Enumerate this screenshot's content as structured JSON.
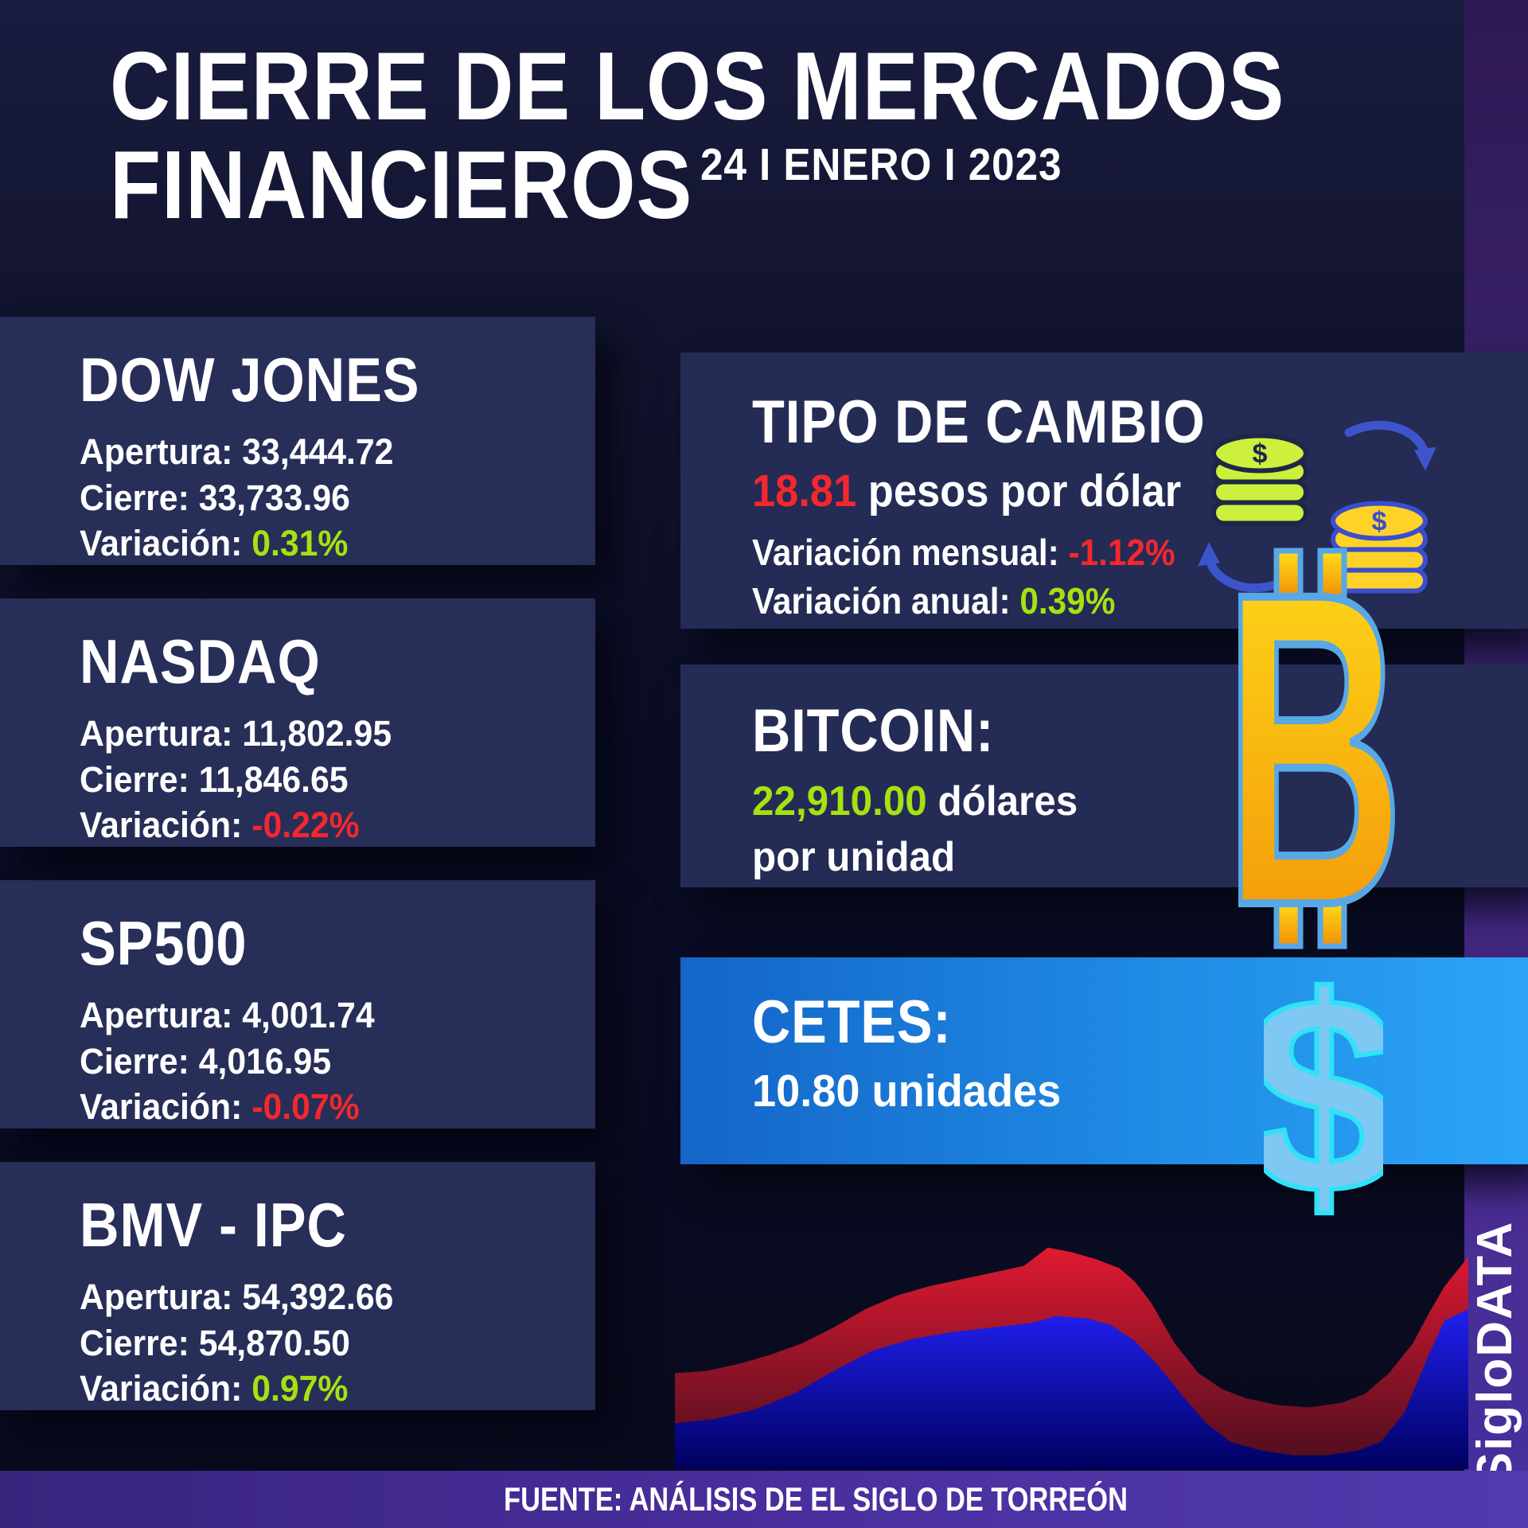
{
  "header": {
    "title_line1": "CIERRE DE LOS MERCADOS",
    "title_line2": "FINANCIEROS",
    "date": "24 I ENERO I 2023"
  },
  "labels": {
    "apertura": "Apertura:",
    "cierre": "Cierre:",
    "variacion": "Variación:"
  },
  "indices": [
    {
      "name": "DOW JONES",
      "apertura": "33,444.72",
      "cierre": "33,733.96",
      "variacion": "0.31%",
      "direction": "up"
    },
    {
      "name": "NASDAQ",
      "apertura": "11,802.95",
      "cierre": "11,846.65",
      "variacion": "-0.22%",
      "direction": "down"
    },
    {
      "name": "SP500",
      "apertura": "4,001.74",
      "cierre": "4,016.95",
      "variacion": "-0.07%",
      "direction": "down"
    },
    {
      "name": "BMV - IPC",
      "apertura": "54,392.66",
      "cierre": "54,870.50",
      "variacion": "0.97%",
      "direction": "up"
    }
  ],
  "exchange": {
    "title": "TIPO DE CAMBIO",
    "rate": "18.81",
    "rate_suffix": " pesos por dólar",
    "monthly_label": "Variación mensual: ",
    "monthly_value": "-1.12%",
    "monthly_direction": "down",
    "annual_label": "Variación anual: ",
    "annual_value": "0.39%",
    "annual_direction": "up",
    "icon": "currency-exchange-coins",
    "coin_dollar_sign": "$"
  },
  "bitcoin": {
    "title": "BITCOIN:",
    "price": "22,910.00",
    "price_suffix": " dólares",
    "unit_line": "por unidad",
    "symbol": "₿",
    "icon": "bitcoin-symbol"
  },
  "cetes": {
    "title": "CETES:",
    "value": "10.80 unidades",
    "symbol": "$",
    "icon": "dollar-symbol"
  },
  "footer": {
    "source": "FUENTE: ANÁLISIS DE EL SIGLO DE TORREÓN",
    "brand": "SigloDATA"
  },
  "colors": {
    "positive_green": "#a4e211",
    "negative_red": "#f4272d",
    "card_navy": "#272e58",
    "page_navy": "#0b0d25",
    "purple_strip": "#3c2470",
    "footer_purple": "#4b2f9f",
    "cetes_gradient": [
      "#1465c8",
      "#2ba4f6"
    ],
    "bitcoin_gold": [
      "#ffdf1c",
      "#f28f06"
    ],
    "bitcoin_outline": "#57a8e5",
    "dollar_fill": "#7fc8f3",
    "dollar_outline": "#2fe2f7",
    "coin_green": "#cdef3d",
    "coin_gold": "#ffd22a",
    "arrow_blue": "#3d55cc",
    "chart_red": "#d6172b",
    "chart_blue": "#1414e0"
  },
  "chart_data": {
    "type": "area",
    "title": "",
    "xlabel": "",
    "ylabel": "",
    "grid": false,
    "legend": false,
    "note": "Decorative stylized market-trend area chart without axes or tick labels; values estimated as fractions of plot box (x: 0-1 left to right, y: 0-1 bottom to top).",
    "x_range": [
      0,
      1
    ],
    "y_range": [
      0,
      1
    ],
    "series": [
      {
        "name": "red-area",
        "color": "#d6172b",
        "fill_gradient": [
          "#e01a31",
          "#4a0d1e"
        ],
        "points": [
          [
            0,
            0.42
          ],
          [
            0.04,
            0.43
          ],
          [
            0.08,
            0.46
          ],
          [
            0.12,
            0.5
          ],
          [
            0.16,
            0.55
          ],
          [
            0.2,
            0.62
          ],
          [
            0.24,
            0.7
          ],
          [
            0.28,
            0.76
          ],
          [
            0.32,
            0.8
          ],
          [
            0.36,
            0.83
          ],
          [
            0.4,
            0.86
          ],
          [
            0.44,
            0.89
          ],
          [
            0.47,
            0.97
          ],
          [
            0.5,
            0.95
          ],
          [
            0.53,
            0.92
          ],
          [
            0.56,
            0.88
          ],
          [
            0.58,
            0.82
          ],
          [
            0.6,
            0.73
          ],
          [
            0.63,
            0.55
          ],
          [
            0.66,
            0.42
          ],
          [
            0.69,
            0.35
          ],
          [
            0.72,
            0.31
          ],
          [
            0.76,
            0.28
          ],
          [
            0.8,
            0.27
          ],
          [
            0.84,
            0.29
          ],
          [
            0.87,
            0.33
          ],
          [
            0.9,
            0.42
          ],
          [
            0.93,
            0.55
          ],
          [
            0.95,
            0.68
          ],
          [
            0.97,
            0.8
          ],
          [
            1,
            0.93
          ]
        ]
      },
      {
        "name": "blue-area",
        "color": "#1414e0",
        "fill_gradient": [
          "#2020f0",
          "#000060"
        ],
        "points": [
          [
            0,
            0.2
          ],
          [
            0.05,
            0.22
          ],
          [
            0.1,
            0.26
          ],
          [
            0.15,
            0.33
          ],
          [
            0.2,
            0.43
          ],
          [
            0.25,
            0.52
          ],
          [
            0.3,
            0.57
          ],
          [
            0.35,
            0.6
          ],
          [
            0.4,
            0.62
          ],
          [
            0.45,
            0.64
          ],
          [
            0.48,
            0.67
          ],
          [
            0.52,
            0.66
          ],
          [
            0.55,
            0.63
          ],
          [
            0.58,
            0.56
          ],
          [
            0.61,
            0.45
          ],
          [
            0.64,
            0.32
          ],
          [
            0.67,
            0.2
          ],
          [
            0.7,
            0.12
          ],
          [
            0.74,
            0.08
          ],
          [
            0.78,
            0.06
          ],
          [
            0.82,
            0.06
          ],
          [
            0.86,
            0.08
          ],
          [
            0.89,
            0.12
          ],
          [
            0.92,
            0.25
          ],
          [
            0.95,
            0.5
          ],
          [
            0.97,
            0.65
          ],
          [
            1,
            0.7
          ]
        ]
      }
    ]
  }
}
